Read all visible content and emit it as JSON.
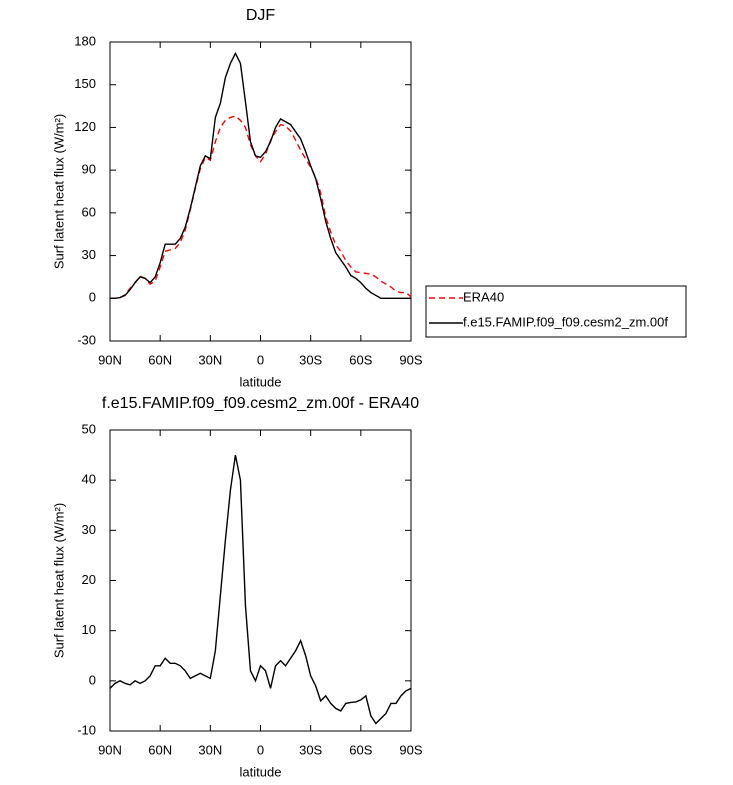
{
  "chart_data": [
    {
      "type": "line",
      "title": "DJF",
      "xlabel": "latitude",
      "ylabel": "Surf latent heat flux (W/m²)",
      "x": [
        90,
        87,
        84,
        81,
        78,
        75,
        72,
        69,
        66,
        63,
        60,
        57,
        54,
        51,
        48,
        45,
        42,
        39,
        36,
        33,
        30,
        27,
        24,
        21,
        18,
        15,
        12,
        9,
        6,
        3,
        0,
        -3,
        -6,
        -9,
        -12,
        -15,
        -18,
        -21,
        -24,
        -27,
        -30,
        -33,
        -36,
        -39,
        -42,
        -45,
        -48,
        -51,
        -54,
        -57,
        -60,
        -63,
        -66,
        -69,
        -72,
        -75,
        -78,
        -81,
        -84,
        -87,
        -90
      ],
      "xlim": [
        90,
        -90
      ],
      "xticks": [
        {
          "value": 90,
          "label": "90N"
        },
        {
          "value": 60,
          "label": "60N"
        },
        {
          "value": 30,
          "label": "30N"
        },
        0,
        {
          "value": -30,
          "label": "30S"
        },
        {
          "value": -60,
          "label": "60S"
        },
        {
          "value": -90,
          "label": "90S"
        }
      ],
      "ylim": [
        -30,
        180
      ],
      "yticks": [
        -30,
        0,
        30,
        60,
        90,
        120,
        150,
        180
      ],
      "legend": "right",
      "series": [
        {
          "name": "ERA40",
          "color": "#ff0000",
          "dash": true,
          "values": [
            0,
            0,
            0.5,
            2.5,
            7,
            11,
            15.5,
            14,
            10,
            12,
            22,
            33,
            34,
            35,
            39,
            48,
            62,
            77,
            91,
            99,
            97,
            110,
            120,
            125,
            127,
            128,
            125,
            120,
            108,
            100,
            96,
            101,
            111,
            117,
            122,
            121,
            117.5,
            111,
            104,
            98,
            92,
            85,
            74,
            57,
            46.5,
            37.5,
            33,
            26.5,
            22,
            18.5,
            18,
            17.5,
            17,
            15,
            12,
            10,
            8,
            5,
            4,
            4,
            1
          ]
        },
        {
          "name": "f.e15.FAMIP.f09_f09.cesm2_zm.00f",
          "color": "#000000",
          "dash": false,
          "values": [
            0,
            0,
            0.5,
            2,
            6,
            11,
            15,
            14,
            11,
            15,
            25,
            38,
            38,
            38,
            42,
            50,
            63,
            78,
            93,
            100,
            98,
            127,
            137,
            155,
            165,
            172,
            165,
            138,
            110,
            100,
            99,
            103,
            110,
            120,
            126,
            124,
            122,
            117,
            112,
            103,
            93,
            84,
            70,
            54,
            42,
            32,
            27,
            22,
            16,
            14,
            11,
            7,
            4,
            2,
            0,
            0,
            0,
            0,
            0,
            0,
            0
          ]
        }
      ]
    },
    {
      "type": "line",
      "title": "f.e15.FAMIP.f09_f09.cesm2_zm.00f - ERA40",
      "xlabel": "latitude",
      "ylabel": "Surf latent heat flux (W/m²)",
      "x": [
        90,
        87,
        84,
        81,
        78,
        75,
        72,
        69,
        66,
        63,
        60,
        57,
        54,
        51,
        48,
        45,
        42,
        39,
        36,
        33,
        30,
        27,
        24,
        21,
        18,
        15,
        12,
        9,
        6,
        3,
        0,
        -3,
        -6,
        -9,
        -12,
        -15,
        -18,
        -21,
        -24,
        -27,
        -30,
        -33,
        -36,
        -39,
        -42,
        -45,
        -48,
        -51,
        -54,
        -57,
        -60,
        -63,
        -66,
        -69,
        -72,
        -75,
        -78,
        -81,
        -84,
        -87,
        -90
      ],
      "xlim": [
        90,
        -90
      ],
      "xticks": [
        {
          "value": 90,
          "label": "90N"
        },
        {
          "value": 60,
          "label": "60N"
        },
        {
          "value": 30,
          "label": "30N"
        },
        0,
        {
          "value": -30,
          "label": "30S"
        },
        {
          "value": -60,
          "label": "60S"
        },
        {
          "value": -90,
          "label": "90S"
        }
      ],
      "ylim": [
        -10,
        50
      ],
      "yticks": [
        -10,
        0,
        10,
        20,
        30,
        40,
        50
      ],
      "series": [
        {
          "color": "#000000",
          "dash": false,
          "values": [
            -1.5,
            -0.5,
            0,
            -0.5,
            -0.8,
            0,
            -0.5,
            0,
            1,
            3,
            3,
            4.5,
            3.5,
            3.5,
            3,
            2,
            0.5,
            1,
            1.5,
            1,
            0.5,
            6,
            17,
            28,
            38,
            45,
            40,
            15,
            2,
            0,
            3,
            2,
            -1.5,
            3,
            4,
            3,
            4.5,
            6,
            8,
            5,
            1,
            -1,
            -4,
            -3,
            -4.5,
            -5.5,
            -6,
            -4.5,
            -4.3,
            -4.2,
            -3.8,
            -3,
            -7,
            -8.5,
            -7.5,
            -6.5,
            -4.5,
            -4.5,
            -3,
            -2,
            -1.5
          ]
        }
      ]
    }
  ]
}
